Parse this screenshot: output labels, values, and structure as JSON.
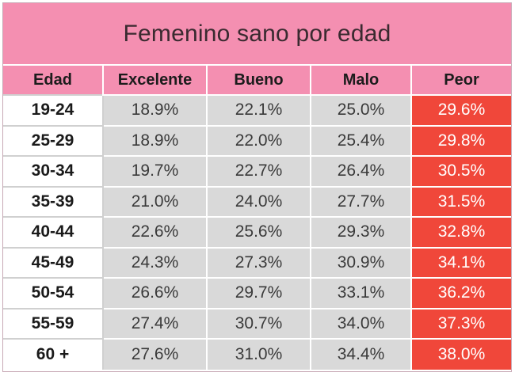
{
  "title": "Femenino sano por edad",
  "headers": [
    "Edad",
    "Excelente",
    "Bueno",
    "Malo",
    "Peor"
  ],
  "rows": [
    {
      "age": "19-24",
      "excelente": "18.9%",
      "bueno": "22.1%",
      "malo": "25.0%",
      "peor": "29.6%"
    },
    {
      "age": "25-29",
      "excelente": "18.9%",
      "bueno": "22.0%",
      "malo": "25.4%",
      "peor": "29.8%"
    },
    {
      "age": "30-34",
      "excelente": "19.7%",
      "bueno": "22.7%",
      "malo": "26.4%",
      "peor": "30.5%"
    },
    {
      "age": "35-39",
      "excelente": "21.0%",
      "bueno": "24.0%",
      "malo": "27.7%",
      "peor": "31.5%"
    },
    {
      "age": "40-44",
      "excelente": "22.6%",
      "bueno": "25.6%",
      "malo": "29.3%",
      "peor": "32.8%"
    },
    {
      "age": "45-49",
      "excelente": "24.3%",
      "bueno": "27.3%",
      "malo": "30.9%",
      "peor": "34.1%"
    },
    {
      "age": "50-54",
      "excelente": "26.6%",
      "bueno": "29.7%",
      "malo": "33.1%",
      "peor": "36.2%"
    },
    {
      "age": "55-59",
      "excelente": "27.4%",
      "bueno": "30.7%",
      "malo": "34.0%",
      "peor": "37.3%"
    },
    {
      "age": "60 +",
      "excelente": "27.6%",
      "bueno": "31.0%",
      "malo": "34.4%",
      "peor": "38.0%"
    }
  ],
  "colors": {
    "header_pink": "#f48fb1",
    "peor_red": "#f0473a",
    "cell_gray": "#d9d9d9"
  }
}
